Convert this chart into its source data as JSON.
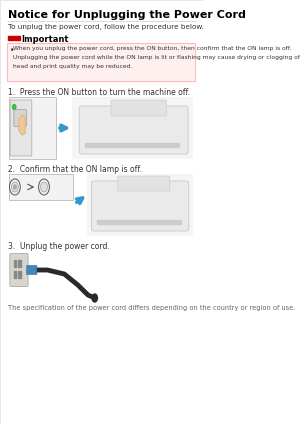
{
  "title": "Notice for Unplugging the Power Cord",
  "subtitle": "To unplug the power cord, follow the procedure below.",
  "important_label": "Important",
  "imp_line1": "When you unplug the power cord, press the ON button, then confirm that the ON lamp is off.",
  "imp_line2": "Unplugging the power cord while the ON lamp is lit or flashing may cause drying or clogging of the print",
  "imp_line3": "head and print quality may be reduced.",
  "step1_text": "1.  Press the ON button to turn the machine off.",
  "step2_text": "2.  Confirm that the ON lamp is off.",
  "step3_text": "3.  Unplug the power cord.",
  "footer": "The specification of the power cord differs depending on the country or region of use.",
  "bg_color": "#ffffff",
  "title_color": "#000000",
  "important_bg": "#fff0f0",
  "important_border": "#ffbbbb",
  "important_icon_color": "#cc0000",
  "text_color": "#333333"
}
